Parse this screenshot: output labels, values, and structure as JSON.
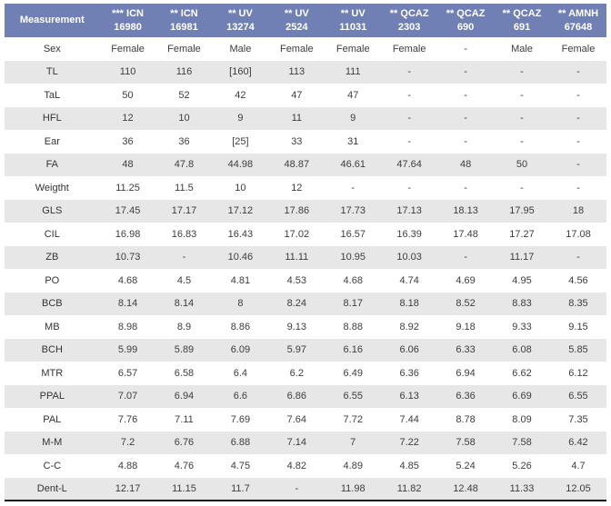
{
  "colors": {
    "header_bg": "#7080b4",
    "header_text": "#ffffff",
    "stripe_bg": "#e7e7e7",
    "body_text": "#3d3d3d",
    "bottom_border": "#1a1a1a"
  },
  "table": {
    "header": {
      "measurement_label": "Measurement",
      "specimens": [
        {
          "line1": "*** ICN",
          "line2": "16980"
        },
        {
          "line1": "** ICN",
          "line2": "16981"
        },
        {
          "line1": "** UV",
          "line2": "13274"
        },
        {
          "line1": "** UV",
          "line2": "2524"
        },
        {
          "line1": "** UV",
          "line2": "11031"
        },
        {
          "line1": "** QCAZ",
          "line2": "2303"
        },
        {
          "line1": "** QCAZ",
          "line2": "690"
        },
        {
          "line1": "** QCAZ",
          "line2": "691"
        },
        {
          "line1": "** AMNH",
          "line2": "67648"
        }
      ]
    },
    "rows": [
      {
        "label": "Sex",
        "values": [
          "Female",
          "Female",
          "Male",
          "Female",
          "Female",
          "Female",
          "-",
          "Male",
          "Female"
        ]
      },
      {
        "label": "TL",
        "values": [
          "110",
          "116",
          "[160]",
          "113",
          "111",
          "-",
          "-",
          "-",
          "-"
        ]
      },
      {
        "label": "TaL",
        "values": [
          "50",
          "52",
          "42",
          "47",
          "47",
          "-",
          "-",
          "-",
          "-"
        ]
      },
      {
        "label": "HFL",
        "values": [
          "12",
          "10",
          "9",
          "11",
          "9",
          "-",
          "-",
          "-",
          "-"
        ]
      },
      {
        "label": "Ear",
        "values": [
          "36",
          "36",
          "[25]",
          "33",
          "31",
          "-",
          "-",
          "-",
          "-"
        ]
      },
      {
        "label": "FA",
        "values": [
          "48",
          "47.8",
          "44.98",
          "48.87",
          "46.61",
          "47.64",
          "48",
          "50",
          "-"
        ]
      },
      {
        "label": "Weigtht",
        "values": [
          "11.25",
          "11.5",
          "10",
          "12",
          "-",
          "-",
          "-",
          "-",
          "-"
        ]
      },
      {
        "label": "GLS",
        "values": [
          "17.45",
          "17.17",
          "17.12",
          "17.86",
          "17.73",
          "17.13",
          "18.13",
          "17.95",
          "18"
        ]
      },
      {
        "label": "CIL",
        "values": [
          "16.98",
          "16.83",
          "16.43",
          "17.02",
          "16.57",
          "16.39",
          "17.48",
          "17.27",
          "17.08"
        ]
      },
      {
        "label": "ZB",
        "values": [
          "10.73",
          "-",
          "10.46",
          "11.11",
          "10.95",
          "10.03",
          "-",
          "11.17",
          "-"
        ]
      },
      {
        "label": "PO",
        "values": [
          "4.68",
          "4.5",
          "4.81",
          "4.53",
          "4.68",
          "4.74",
          "4.69",
          "4.95",
          "4.56"
        ]
      },
      {
        "label": "BCB",
        "values": [
          "8.14",
          "8.14",
          "8",
          "8.24",
          "8.17",
          "8.18",
          "8.52",
          "8.83",
          "8.35"
        ]
      },
      {
        "label": "MB",
        "values": [
          "8.98",
          "8.9",
          "8.86",
          "9.13",
          "8.88",
          "8.92",
          "9.18",
          "9.33",
          "9.15"
        ]
      },
      {
        "label": "BCH",
        "values": [
          "5.99",
          "5.89",
          "6.09",
          "5.97",
          "6.16",
          "6.06",
          "6.33",
          "6.08",
          "5.85"
        ]
      },
      {
        "label": "MTR",
        "values": [
          "6.57",
          "6.58",
          "6.4",
          "6.2",
          "6.49",
          "6.36",
          "6.94",
          "6.62",
          "6.12"
        ]
      },
      {
        "label": "PPAL",
        "values": [
          "7.07",
          "6.94",
          "6.6",
          "6.86",
          "6.55",
          "6.13",
          "6.36",
          "6.69",
          "6.55"
        ]
      },
      {
        "label": "PAL",
        "values": [
          "7.76",
          "7.11",
          "7.69",
          "7.64",
          "7.72",
          "7.44",
          "8.78",
          "8.09",
          "7.35"
        ]
      },
      {
        "label": "M-M",
        "values": [
          "7.2",
          "6.76",
          "6.88",
          "7.14",
          "7",
          "7.22",
          "7.58",
          "7.58",
          "6.42"
        ]
      },
      {
        "label": "C-C",
        "values": [
          "4.88",
          "4.76",
          "4.75",
          "4.82",
          "4.89",
          "4.85",
          "5.24",
          "5.26",
          "4.7"
        ]
      },
      {
        "label": "Dent-L",
        "values": [
          "12.17",
          "11.15",
          "11.7",
          "-",
          "11.98",
          "11.82",
          "12.48",
          "11.33",
          "12.05"
        ]
      }
    ]
  }
}
